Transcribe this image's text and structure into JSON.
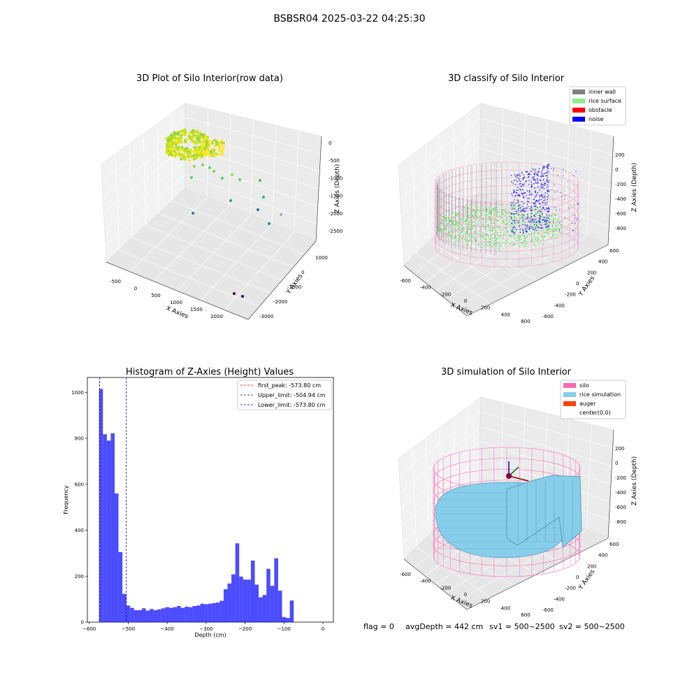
{
  "suptitle": "BSBSR04 2025-03-22 04:25:30",
  "footer": {
    "flag": "flag = 0",
    "avg": "avgDepth = 442 cm",
    "sv1": "sv1 = 500~2500",
    "sv2": "sv2 = 500~2500"
  },
  "colors": {
    "histogram": "#0000ff",
    "first_peak": "#ff0000",
    "limit": "#00008b",
    "inner_wall": "#808080",
    "rice_surface": "#90ee90",
    "obstacle": "#ff0000",
    "noise": "#0000ff",
    "silo": "#ff69b4",
    "rice_simulation": "#87ceeb",
    "auger": "#ff4500"
  },
  "chart_data": [
    {
      "type": "scatter",
      "subtype": "3d",
      "title": "3D Plot of Silo Interior(row data)",
      "xlabel": "X Axies",
      "ylabel": "Y Axies",
      "zlabel": "Z Axies (Depth)",
      "x_ticks": [
        "-500",
        "0",
        "500",
        "1000",
        "1500",
        "2000"
      ],
      "y_ticks": [
        "-3000",
        "-2000",
        "-1000",
        "0",
        "1000"
      ],
      "z_ticks": [
        "0",
        "-500",
        "-1000",
        "-1500",
        "-2000",
        "-2500"
      ],
      "xlim": [
        -600,
        2300
      ],
      "ylim": [
        -3100,
        1500
      ],
      "zlim": [
        -2800,
        100
      ],
      "colormap": "viridis"
    },
    {
      "type": "scatter",
      "subtype": "3d",
      "title": "3D classify of Silo Interior",
      "xlabel": "X Axies",
      "ylabel": "Y Axies",
      "zlabel": "Z Axies (Depth)",
      "x_ticks": [
        "-600",
        "-400",
        "-200",
        "0",
        "200",
        "400",
        "600"
      ],
      "y_ticks": [
        "-600",
        "-400",
        "-200",
        "0",
        "200",
        "400",
        "600"
      ],
      "z_ticks": [
        "200",
        "0",
        "-200",
        "-400",
        "-600",
        "-800"
      ],
      "xlim": [
        -650,
        650
      ],
      "ylim": [
        -650,
        650
      ],
      "zlim": [
        -900,
        300
      ],
      "legend": [
        "inner wall",
        "rice surface",
        "obstacle",
        "noise"
      ],
      "legend_position": "top-right"
    },
    {
      "type": "bar",
      "subtype": "histogram",
      "title": "Histogram of Z-Axies (Height) Values",
      "xlabel": "Depth (cm)",
      "ylabel": "Frequency",
      "bin_width": 10,
      "bin_start": -575,
      "values": [
        1015,
        818,
        790,
        822,
        560,
        305,
        123,
        72,
        62,
        52,
        52,
        60,
        50,
        57,
        52,
        56,
        60,
        65,
        62,
        65,
        70,
        62,
        67,
        65,
        70,
        72,
        80,
        78,
        80,
        83,
        85,
        93,
        143,
        168,
        208,
        343,
        198,
        185,
        185,
        268,
        163,
        108,
        118,
        232,
        158,
        278,
        137,
        22,
        18,
        94
      ],
      "x_ticks": [
        -600,
        -500,
        -400,
        -300,
        -200,
        -100,
        0
      ],
      "y_ticks": [
        0,
        200,
        400,
        600,
        800,
        1000
      ],
      "xlim": [
        -605,
        27
      ],
      "ylim": [
        0,
        1065
      ],
      "vlines": [
        {
          "label": "first_peak: -573.80 cm",
          "x": -573.8,
          "role": "first_peak"
        },
        {
          "label": "Upper_limit: -504.94 cm",
          "x": -504.94,
          "role": "limit"
        },
        {
          "label": "Lower_limit: -573.80 cm",
          "x": -573.8,
          "role": "limit"
        }
      ],
      "legend_position": "top-right"
    },
    {
      "type": "area",
      "subtype": "3d-surface",
      "title": "3D simulation of Silo Interior",
      "xlabel": "X Axies",
      "ylabel": "Y Axies",
      "zlabel": "Z Axies (Depth)",
      "x_ticks": [
        "-600",
        "-400",
        "-200",
        "0",
        "200",
        "400",
        "600"
      ],
      "y_ticks": [
        "-600",
        "-400",
        "-200",
        "0",
        "200",
        "400",
        "600"
      ],
      "z_ticks": [
        "200",
        "0",
        "-200",
        "-400",
        "-600",
        "-800"
      ],
      "xlim": [
        -650,
        650
      ],
      "ylim": [
        -650,
        650
      ],
      "zlim": [
        -900,
        300
      ],
      "legend": [
        "silo",
        "rice simulation",
        "auger",
        "center(0,0)"
      ],
      "legend_position": "top-right"
    }
  ]
}
